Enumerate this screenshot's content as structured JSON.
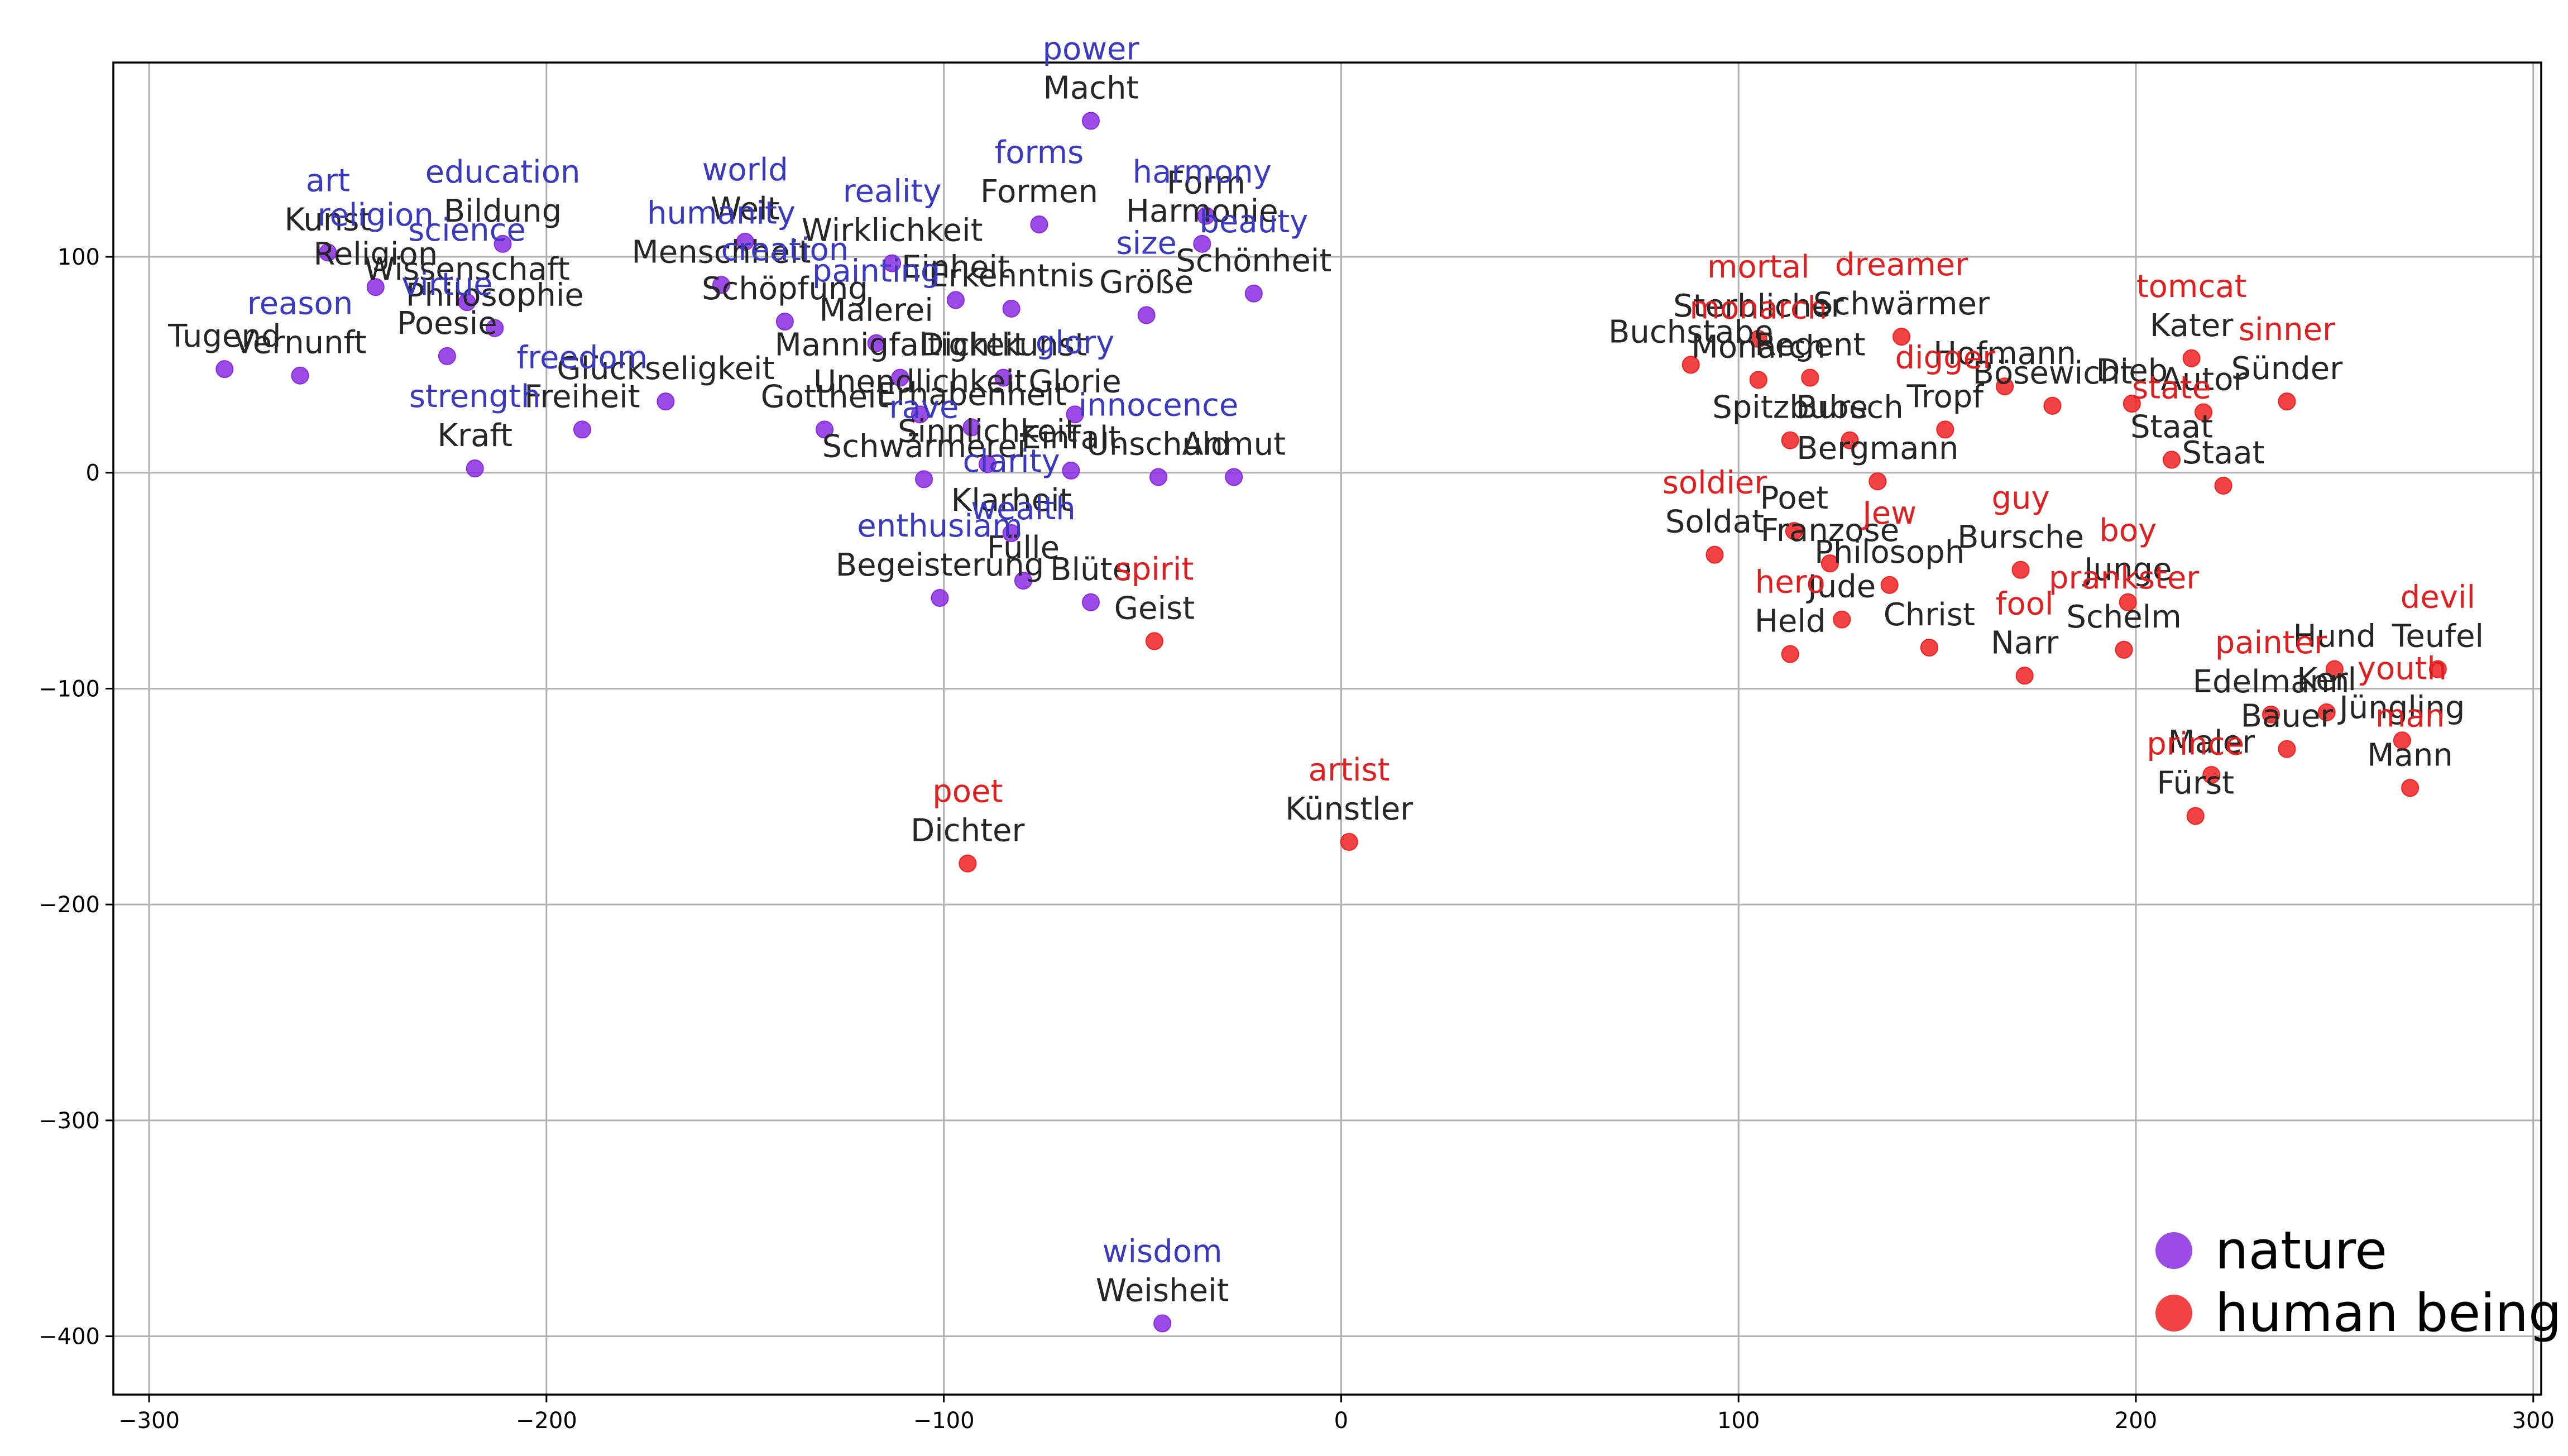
{
  "chart_data": {
    "type": "scatter",
    "title": "",
    "xlabel": "",
    "ylabel": "",
    "xlim": [
      -309,
      302
    ],
    "ylim": [
      -427,
      190
    ],
    "xticks": [
      -300,
      -200,
      -100,
      0,
      100,
      200,
      300
    ],
    "yticks": [
      -400,
      -300,
      -200,
      -100,
      0,
      100
    ],
    "xtick_labels": [
      "−300",
      "−200",
      "−100",
      "0",
      "100",
      "200",
      "300"
    ],
    "ytick_labels": [
      "−400",
      "−300",
      "−200",
      "−100",
      "0",
      "100"
    ],
    "grid": true,
    "legend_position": "bottom-right",
    "series": [
      {
        "name": "nature",
        "color": "#8a2be2",
        "label_color": "#3a3ac0",
        "points": [
          {
            "x": -63,
            "y": 163,
            "de": "Macht",
            "en": "power"
          },
          {
            "x": -76,
            "y": 115,
            "de": "Formen",
            "en": "forms"
          },
          {
            "x": -34,
            "y": 119,
            "de": "Form",
            "en": ""
          },
          {
            "x": -35,
            "y": 106,
            "de": "Harmonie",
            "en": "harmony"
          },
          {
            "x": -22,
            "y": 83,
            "de": "Schönheit",
            "en": "beauty"
          },
          {
            "x": -49,
            "y": 73,
            "de": "Größe",
            "en": "size"
          },
          {
            "x": -255,
            "y": 102,
            "de": "Kunst",
            "en": "art"
          },
          {
            "x": -211,
            "y": 106,
            "de": "Bildung",
            "en": "education"
          },
          {
            "x": -150,
            "y": 107,
            "de": "Welt",
            "en": "world"
          },
          {
            "x": -113,
            "y": 97,
            "de": "Wirklichkeit",
            "en": "reality"
          },
          {
            "x": -243,
            "y": 86,
            "de": "Religion",
            "en": "religion"
          },
          {
            "x": -220,
            "y": 79,
            "de": "Wissenschaft",
            "en": "science"
          },
          {
            "x": -213,
            "y": 67,
            "de": "Philosophie",
            "en": ""
          },
          {
            "x": -156,
            "y": 87,
            "de": "Menschheit",
            "en": "humanity"
          },
          {
            "x": -97,
            "y": 80,
            "de": "Einheit",
            "en": ""
          },
          {
            "x": -83,
            "y": 76,
            "de": "Erkenntnis",
            "en": ""
          },
          {
            "x": -140,
            "y": 70,
            "de": "Schöpfung",
            "en": "creation"
          },
          {
            "x": -117,
            "y": 60,
            "de": "Malerei",
            "en": "painting"
          },
          {
            "x": -225,
            "y": 54,
            "de": "Poesie",
            "en": "virtue"
          },
          {
            "x": -281,
            "y": 48,
            "de": "Tugend",
            "en": ""
          },
          {
            "x": -262,
            "y": 45,
            "de": "Vernunft",
            "en": "reason"
          },
          {
            "x": -111,
            "y": 44,
            "de": "Mannigfaltigkeit",
            "en": ""
          },
          {
            "x": -85,
            "y": 44,
            "de": "Dichtkunst",
            "en": ""
          },
          {
            "x": -170,
            "y": 33,
            "de": "Glückseligkeit",
            "en": ""
          },
          {
            "x": -106,
            "y": 27,
            "de": "Unendlichkeit",
            "en": ""
          },
          {
            "x": -67,
            "y": 27,
            "de": "Glorie",
            "en": "glory"
          },
          {
            "x": -191,
            "y": 20,
            "de": "Freiheit",
            "en": "freedom"
          },
          {
            "x": -130,
            "y": 20,
            "de": "Gottheit",
            "en": ""
          },
          {
            "x": -93,
            "y": 21,
            "de": "Erhabenheit",
            "en": ""
          },
          {
            "x": -218,
            "y": 2,
            "de": "Kraft",
            "en": "strength"
          },
          {
            "x": -105,
            "y": -3,
            "de": "Schwärmerei",
            "en": "rave"
          },
          {
            "x": -89,
            "y": 4,
            "de": "Sinnlichkeit",
            "en": ""
          },
          {
            "x": -68,
            "y": 1,
            "de": "Einfalt",
            "en": ""
          },
          {
            "x": -46,
            "y": -2,
            "de": "Unschuld",
            "en": "innocence"
          },
          {
            "x": -27,
            "y": -2,
            "de": "Anmut",
            "en": ""
          },
          {
            "x": -83,
            "y": -28,
            "de": "Klarheit",
            "en": "clarity"
          },
          {
            "x": -80,
            "y": -50,
            "de": "Fülle",
            "en": "wealth"
          },
          {
            "x": -101,
            "y": -58,
            "de": "Begeisterung",
            "en": "enthusiam"
          },
          {
            "x": -63,
            "y": -60,
            "de": "Blüte",
            "en": ""
          },
          {
            "x": -45,
            "y": -394,
            "de": "Weisheit",
            "en": "wisdom"
          }
        ]
      },
      {
        "name": "human being",
        "color": "#ee2222",
        "label_color": "#e02020",
        "points": [
          {
            "x": 105,
            "y": 62,
            "de": "Sterblicher",
            "en": "mortal"
          },
          {
            "x": 88,
            "y": 50,
            "de": "Buchstabe",
            "en": ""
          },
          {
            "x": 105,
            "y": 43,
            "de": "Monarch",
            "en": "monarch"
          },
          {
            "x": 118,
            "y": 44,
            "de": "Regent",
            "en": ""
          },
          {
            "x": 141,
            "y": 63,
            "de": "Schwärmer",
            "en": "dreamer"
          },
          {
            "x": 167,
            "y": 40,
            "de": "Hofmann",
            "en": ""
          },
          {
            "x": 214,
            "y": 53,
            "de": "Kater",
            "en": "tomcat"
          },
          {
            "x": 238,
            "y": 33,
            "de": "Sünder",
            "en": "sinner"
          },
          {
            "x": 199,
            "y": 32,
            "de": "Dieb",
            "en": ""
          },
          {
            "x": 179,
            "y": 31,
            "de": "Bösewicht",
            "en": ""
          },
          {
            "x": 217,
            "y": 28,
            "de": "Autor",
            "en": ""
          },
          {
            "x": 113,
            "y": 15,
            "de": "Spitzbube",
            "en": ""
          },
          {
            "x": 128,
            "y": 15,
            "de": "Bursch",
            "en": ""
          },
          {
            "x": 152,
            "y": 20,
            "de": "Tropf",
            "en": "digger"
          },
          {
            "x": 209,
            "y": 6,
            "de": "Staat",
            "en": "state"
          },
          {
            "x": 135,
            "y": -4,
            "de": "Bergmann",
            "en": ""
          },
          {
            "x": 222,
            "y": -6,
            "de": "Staat",
            "en": ""
          },
          {
            "x": 94,
            "y": -38,
            "de": "Soldat",
            "en": "soldier"
          },
          {
            "x": 114,
            "y": -27,
            "de": "Poet",
            "en": ""
          },
          {
            "x": 123,
            "y": -42,
            "de": "Franzose",
            "en": ""
          },
          {
            "x": 138,
            "y": -52,
            "de": "Philosoph",
            "en": "Jew"
          },
          {
            "x": 171,
            "y": -45,
            "de": "Bursche",
            "en": "guy"
          },
          {
            "x": 198,
            "y": -60,
            "de": "Junge",
            "en": "boy"
          },
          {
            "x": 126,
            "y": -68,
            "de": "Jude",
            "en": ""
          },
          {
            "x": 113,
            "y": -84,
            "de": "Held",
            "en": "hero"
          },
          {
            "x": 148,
            "y": -81,
            "de": "Christ",
            "en": ""
          },
          {
            "x": 172,
            "y": -94,
            "de": "Narr",
            "en": "fool"
          },
          {
            "x": 197,
            "y": -82,
            "de": "Schelm",
            "en": "prankster"
          },
          {
            "x": 250,
            "y": -91,
            "de": "Hund",
            "en": ""
          },
          {
            "x": 276,
            "y": -91,
            "de": "Teufel",
            "en": "devil"
          },
          {
            "x": 234,
            "y": -112,
            "de": "Edelmann",
            "en": "painter"
          },
          {
            "x": 248,
            "y": -111,
            "de": "Kerl",
            "en": ""
          },
          {
            "x": 238,
            "y": -128,
            "de": "Bauer",
            "en": ""
          },
          {
            "x": 267,
            "y": -124,
            "de": "Jüngling",
            "en": "youth"
          },
          {
            "x": 219,
            "y": -140,
            "de": "Maler",
            "en": ""
          },
          {
            "x": 269,
            "y": -146,
            "de": "Mann",
            "en": "man"
          },
          {
            "x": 215,
            "y": -159,
            "de": "Fürst",
            "en": "prince"
          },
          {
            "x": -47,
            "y": -78,
            "de": "Geist",
            "en": "spirit"
          },
          {
            "x": -94,
            "y": -181,
            "de": "Dichter",
            "en": "poet"
          },
          {
            "x": 2,
            "y": -171,
            "de": "Künstler",
            "en": "artist"
          }
        ]
      }
    ]
  }
}
